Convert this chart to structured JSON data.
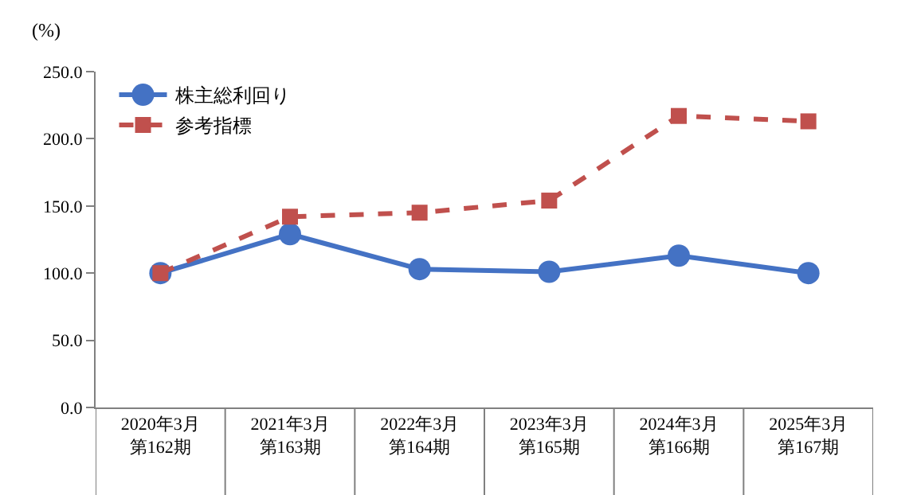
{
  "chart_data": {
    "type": "line",
    "ylabel": "(%)",
    "categories": [
      "2020年3月第162期",
      "2021年3月第163期",
      "2022年3月第164期",
      "2023年3月第165期",
      "2024年3月第166期",
      "2025年3月第167期"
    ],
    "series": [
      {
        "name": "株主総利回り",
        "color": "#4472c4",
        "values": [
          100,
          129,
          103,
          101,
          113,
          100
        ],
        "marker": "circle",
        "line_style": "solid"
      },
      {
        "name": "参考指標",
        "color": "#c0504d",
        "values": [
          100,
          142,
          145,
          154,
          217,
          213
        ],
        "marker": "square",
        "line_style": "dashed"
      }
    ],
    "ylim": [
      0,
      250
    ],
    "yticks": [
      {
        "value": 0,
        "label": "0.0"
      },
      {
        "value": 50,
        "label": "50.0"
      },
      {
        "value": 100,
        "label": "100.0"
      },
      {
        "value": 150,
        "label": "150.0"
      },
      {
        "value": 200,
        "label": "200.0"
      },
      {
        "value": 250,
        "label": "250.0"
      }
    ],
    "legend": "top left"
  }
}
